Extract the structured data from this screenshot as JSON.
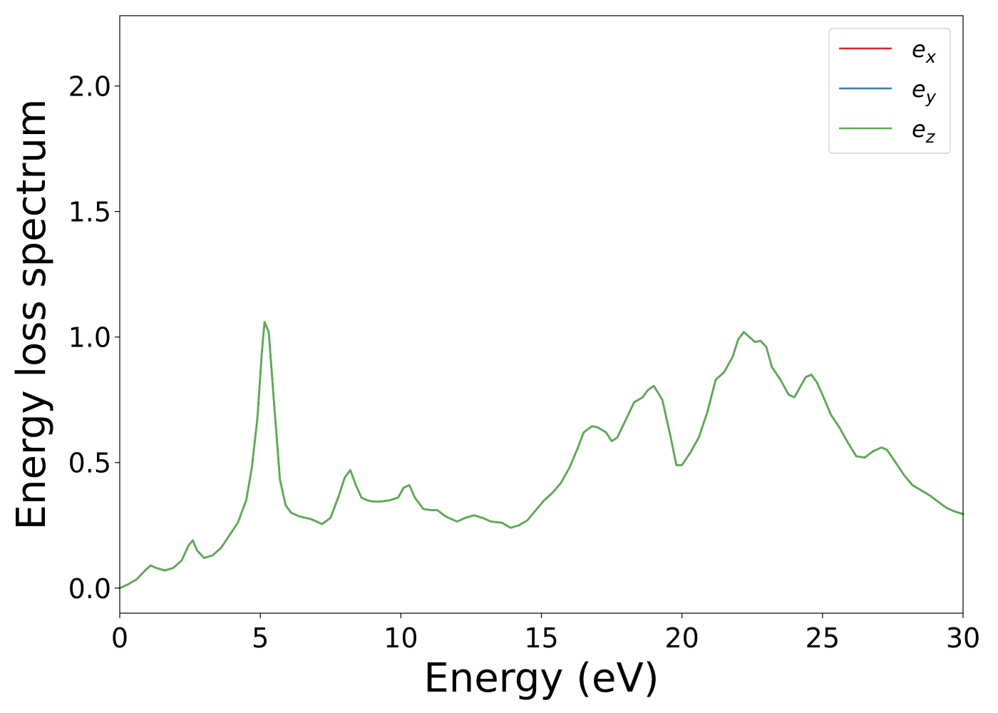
{
  "chart_data": {
    "type": "line",
    "title": "",
    "xlabel": "Energy (eV)",
    "ylabel": "Energy loss spectrum",
    "xlim": [
      0,
      30
    ],
    "ylim": [
      -0.1,
      2.28
    ],
    "xticks": [
      0,
      5,
      10,
      15,
      20,
      25,
      30
    ],
    "xtick_labels": [
      "0",
      "5",
      "10",
      "15",
      "20",
      "25",
      "30"
    ],
    "yticks": [
      0.0,
      0.5,
      1.0,
      1.5,
      2.0
    ],
    "ytick_labels": [
      "0.0",
      "0.5",
      "1.0",
      "1.5",
      "2.0"
    ],
    "grid": false,
    "legend_position": "top-right",
    "x": [
      0,
      0.3,
      0.6,
      0.9,
      1.1,
      1.3,
      1.6,
      1.9,
      2.2,
      2.45,
      2.6,
      2.75,
      3.0,
      3.3,
      3.6,
      3.9,
      4.2,
      4.5,
      4.7,
      4.9,
      5.05,
      5.15,
      5.3,
      5.5,
      5.7,
      5.9,
      6.1,
      6.4,
      6.8,
      7.2,
      7.5,
      7.8,
      8.0,
      8.2,
      8.4,
      8.6,
      8.8,
      9.0,
      9.3,
      9.6,
      9.9,
      10.1,
      10.3,
      10.5,
      10.8,
      11.1,
      11.3,
      11.6,
      12.0,
      12.3,
      12.6,
      12.9,
      13.2,
      13.6,
      13.9,
      14.2,
      14.5,
      14.8,
      15.1,
      15.4,
      15.7,
      16.0,
      16.3,
      16.5,
      16.8,
      17.0,
      17.3,
      17.5,
      17.7,
      18.0,
      18.3,
      18.6,
      18.8,
      19.0,
      19.3,
      19.6,
      19.8,
      20.0,
      20.3,
      20.6,
      20.9,
      21.2,
      21.5,
      21.8,
      22.0,
      22.2,
      22.4,
      22.6,
      22.8,
      23.0,
      23.2,
      23.5,
      23.8,
      24.0,
      24.2,
      24.4,
      24.6,
      24.8,
      25.0,
      25.3,
      25.6,
      25.9,
      26.2,
      26.5,
      26.8,
      27.1,
      27.3,
      27.6,
      27.9,
      28.2,
      28.5,
      28.8,
      29.1,
      29.4,
      29.7,
      30.0
    ],
    "series": [
      {
        "name": "e_x",
        "legend_base": "e",
        "legend_sub": "x",
        "color": "#d62728",
        "values": [
          0.0,
          0.015,
          0.035,
          0.07,
          0.09,
          0.08,
          0.07,
          0.08,
          0.11,
          0.17,
          0.19,
          0.15,
          0.12,
          0.13,
          0.16,
          0.21,
          0.26,
          0.35,
          0.48,
          0.68,
          0.93,
          1.06,
          1.02,
          0.72,
          0.43,
          0.33,
          0.3,
          0.285,
          0.275,
          0.255,
          0.28,
          0.37,
          0.44,
          0.47,
          0.41,
          0.36,
          0.35,
          0.345,
          0.345,
          0.35,
          0.36,
          0.4,
          0.41,
          0.36,
          0.315,
          0.31,
          0.31,
          0.285,
          0.265,
          0.28,
          0.29,
          0.28,
          0.265,
          0.26,
          0.24,
          0.25,
          0.27,
          0.31,
          0.35,
          0.38,
          0.42,
          0.48,
          0.56,
          0.62,
          0.645,
          0.64,
          0.62,
          0.585,
          0.6,
          0.67,
          0.74,
          0.76,
          0.79,
          0.805,
          0.75,
          0.6,
          0.49,
          0.49,
          0.54,
          0.6,
          0.7,
          0.83,
          0.86,
          0.92,
          0.99,
          1.02,
          1.0,
          0.98,
          0.985,
          0.96,
          0.88,
          0.83,
          0.77,
          0.76,
          0.8,
          0.84,
          0.85,
          0.82,
          0.77,
          0.69,
          0.64,
          0.58,
          0.525,
          0.52,
          0.545,
          0.56,
          0.55,
          0.5,
          0.45,
          0.41,
          0.39,
          0.37,
          0.345,
          0.32,
          0.305,
          0.295
        ]
      },
      {
        "name": "e_y",
        "legend_base": "e",
        "legend_sub": "y",
        "color": "#377eb8",
        "values": [
          0.0,
          0.015,
          0.035,
          0.07,
          0.09,
          0.08,
          0.07,
          0.08,
          0.11,
          0.17,
          0.19,
          0.15,
          0.12,
          0.13,
          0.16,
          0.21,
          0.26,
          0.35,
          0.48,
          0.68,
          0.93,
          1.06,
          1.02,
          0.72,
          0.43,
          0.33,
          0.3,
          0.285,
          0.275,
          0.255,
          0.28,
          0.37,
          0.44,
          0.47,
          0.41,
          0.36,
          0.35,
          0.345,
          0.345,
          0.35,
          0.36,
          0.4,
          0.41,
          0.36,
          0.315,
          0.31,
          0.31,
          0.285,
          0.265,
          0.28,
          0.29,
          0.28,
          0.265,
          0.26,
          0.24,
          0.25,
          0.27,
          0.31,
          0.35,
          0.38,
          0.42,
          0.48,
          0.56,
          0.62,
          0.645,
          0.64,
          0.62,
          0.585,
          0.6,
          0.67,
          0.74,
          0.76,
          0.79,
          0.805,
          0.75,
          0.6,
          0.49,
          0.49,
          0.54,
          0.6,
          0.7,
          0.83,
          0.86,
          0.92,
          0.99,
          1.02,
          1.0,
          0.98,
          0.985,
          0.96,
          0.88,
          0.83,
          0.77,
          0.76,
          0.8,
          0.84,
          0.85,
          0.82,
          0.77,
          0.69,
          0.64,
          0.58,
          0.525,
          0.52,
          0.545,
          0.56,
          0.55,
          0.5,
          0.45,
          0.41,
          0.39,
          0.37,
          0.345,
          0.32,
          0.305,
          0.295
        ]
      },
      {
        "name": "e_z",
        "legend_base": "e",
        "legend_sub": "z",
        "color": "#5aad4e",
        "values": [
          0.0,
          0.015,
          0.035,
          0.07,
          0.09,
          0.08,
          0.07,
          0.08,
          0.11,
          0.17,
          0.19,
          0.15,
          0.12,
          0.13,
          0.16,
          0.21,
          0.26,
          0.35,
          0.48,
          0.68,
          0.93,
          1.06,
          1.02,
          0.72,
          0.43,
          0.33,
          0.3,
          0.285,
          0.275,
          0.255,
          0.28,
          0.37,
          0.44,
          0.47,
          0.41,
          0.36,
          0.35,
          0.345,
          0.345,
          0.35,
          0.36,
          0.4,
          0.41,
          0.36,
          0.315,
          0.31,
          0.31,
          0.285,
          0.265,
          0.28,
          0.29,
          0.28,
          0.265,
          0.26,
          0.24,
          0.25,
          0.27,
          0.31,
          0.35,
          0.38,
          0.42,
          0.48,
          0.56,
          0.62,
          0.645,
          0.64,
          0.62,
          0.585,
          0.6,
          0.67,
          0.74,
          0.76,
          0.79,
          0.805,
          0.75,
          0.6,
          0.49,
          0.49,
          0.54,
          0.6,
          0.7,
          0.83,
          0.86,
          0.92,
          0.99,
          1.02,
          1.0,
          0.98,
          0.985,
          0.96,
          0.88,
          0.83,
          0.77,
          0.76,
          0.8,
          0.84,
          0.85,
          0.82,
          0.77,
          0.69,
          0.64,
          0.58,
          0.525,
          0.52,
          0.545,
          0.56,
          0.55,
          0.5,
          0.45,
          0.41,
          0.39,
          0.37,
          0.345,
          0.32,
          0.305,
          0.295
        ]
      }
    ]
  }
}
